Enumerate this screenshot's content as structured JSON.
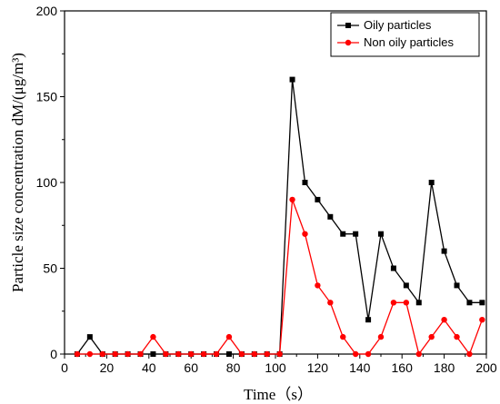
{
  "chart_data": {
    "type": "line",
    "xlabel": "Time（s）",
    "ylabel": "Particle size concentration dM/(μg/m³)",
    "xlim": [
      0,
      200
    ],
    "ylim": [
      0,
      200
    ],
    "xticks": [
      0,
      20,
      40,
      60,
      80,
      100,
      120,
      140,
      160,
      180,
      200
    ],
    "yticks": [
      0,
      50,
      100,
      150,
      200
    ],
    "grid": false,
    "legend_position": "top-right",
    "x": [
      6,
      12,
      18,
      24,
      30,
      36,
      42,
      48,
      54,
      60,
      66,
      72,
      78,
      84,
      90,
      96,
      102,
      108,
      114,
      120,
      126,
      132,
      138,
      144,
      150,
      156,
      162,
      168,
      174,
      180,
      186,
      192,
      198
    ],
    "series": [
      {
        "name": "Oily particles",
        "color": "#000000",
        "marker": "square",
        "values": [
          0,
          10,
          0,
          0,
          0,
          0,
          0,
          0,
          0,
          0,
          0,
          0,
          0,
          0,
          0,
          0,
          0,
          160,
          100,
          90,
          80,
          70,
          70,
          20,
          70,
          50,
          40,
          30,
          100,
          60,
          40,
          30,
          30
        ]
      },
      {
        "name": "Non oily particles",
        "color": "#ff0000",
        "marker": "circle",
        "values": [
          0,
          0,
          0,
          0,
          0,
          0,
          10,
          0,
          0,
          0,
          0,
          0,
          10,
          0,
          0,
          0,
          0,
          90,
          70,
          40,
          30,
          10,
          0,
          0,
          10,
          30,
          30,
          0,
          10,
          20,
          10,
          0,
          20
        ]
      }
    ]
  }
}
